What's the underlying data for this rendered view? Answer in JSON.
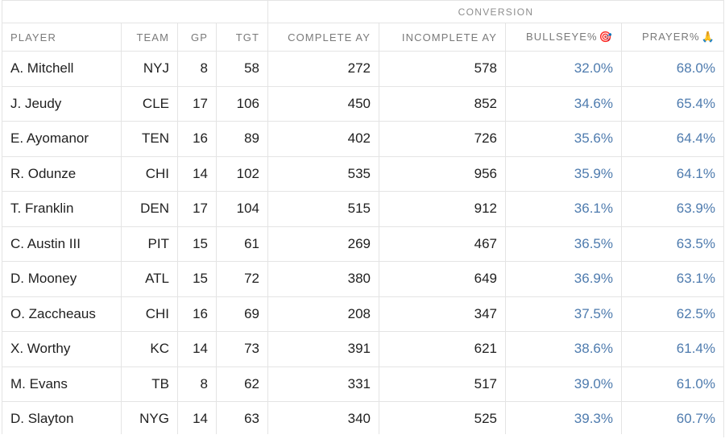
{
  "table": {
    "group_label": "CONVERSION",
    "headers": {
      "player": "PLAYER",
      "team": "TEAM",
      "gp": "GP",
      "tgt": "TGT",
      "complete_ay": "COMPLETE AY",
      "incomplete_ay": "INCOMPLETE AY",
      "bullseye": "BULLSEYE%",
      "bullseye_icon": "🎯",
      "prayer": "PRAYER%",
      "prayer_icon": "🙏"
    },
    "rows": [
      {
        "player": "A. Mitchell",
        "team": "NYJ",
        "gp": "8",
        "tgt": "58",
        "complete_ay": "272",
        "incomplete_ay": "578",
        "bullseye": "32.0%",
        "prayer": "68.0%"
      },
      {
        "player": "J. Jeudy",
        "team": "CLE",
        "gp": "17",
        "tgt": "106",
        "complete_ay": "450",
        "incomplete_ay": "852",
        "bullseye": "34.6%",
        "prayer": "65.4%"
      },
      {
        "player": "E. Ayomanor",
        "team": "TEN",
        "gp": "16",
        "tgt": "89",
        "complete_ay": "402",
        "incomplete_ay": "726",
        "bullseye": "35.6%",
        "prayer": "64.4%"
      },
      {
        "player": "R. Odunze",
        "team": "CHI",
        "gp": "14",
        "tgt": "102",
        "complete_ay": "535",
        "incomplete_ay": "956",
        "bullseye": "35.9%",
        "prayer": "64.1%"
      },
      {
        "player": "T. Franklin",
        "team": "DEN",
        "gp": "17",
        "tgt": "104",
        "complete_ay": "515",
        "incomplete_ay": "912",
        "bullseye": "36.1%",
        "prayer": "63.9%"
      },
      {
        "player": "C. Austin III",
        "team": "PIT",
        "gp": "15",
        "tgt": "61",
        "complete_ay": "269",
        "incomplete_ay": "467",
        "bullseye": "36.5%",
        "prayer": "63.5%"
      },
      {
        "player": "D. Mooney",
        "team": "ATL",
        "gp": "15",
        "tgt": "72",
        "complete_ay": "380",
        "incomplete_ay": "649",
        "bullseye": "36.9%",
        "prayer": "63.1%"
      },
      {
        "player": "O. Zaccheaus",
        "team": "CHI",
        "gp": "16",
        "tgt": "69",
        "complete_ay": "208",
        "incomplete_ay": "347",
        "bullseye": "37.5%",
        "prayer": "62.5%"
      },
      {
        "player": "X. Worthy",
        "team": "KC",
        "gp": "14",
        "tgt": "73",
        "complete_ay": "391",
        "incomplete_ay": "621",
        "bullseye": "38.6%",
        "prayer": "61.4%"
      },
      {
        "player": "M. Evans",
        "team": "TB",
        "gp": "8",
        "tgt": "62",
        "complete_ay": "331",
        "incomplete_ay": "517",
        "bullseye": "39.0%",
        "prayer": "61.0%"
      },
      {
        "player": "D. Slayton",
        "team": "NYG",
        "gp": "14",
        "tgt": "63",
        "complete_ay": "340",
        "incomplete_ay": "525",
        "bullseye": "39.3%",
        "prayer": "60.7%"
      }
    ]
  },
  "colors": {
    "percent_text": "#4e7bae",
    "header_text": "#7a7a7a",
    "border": "#e4e4e4"
  }
}
